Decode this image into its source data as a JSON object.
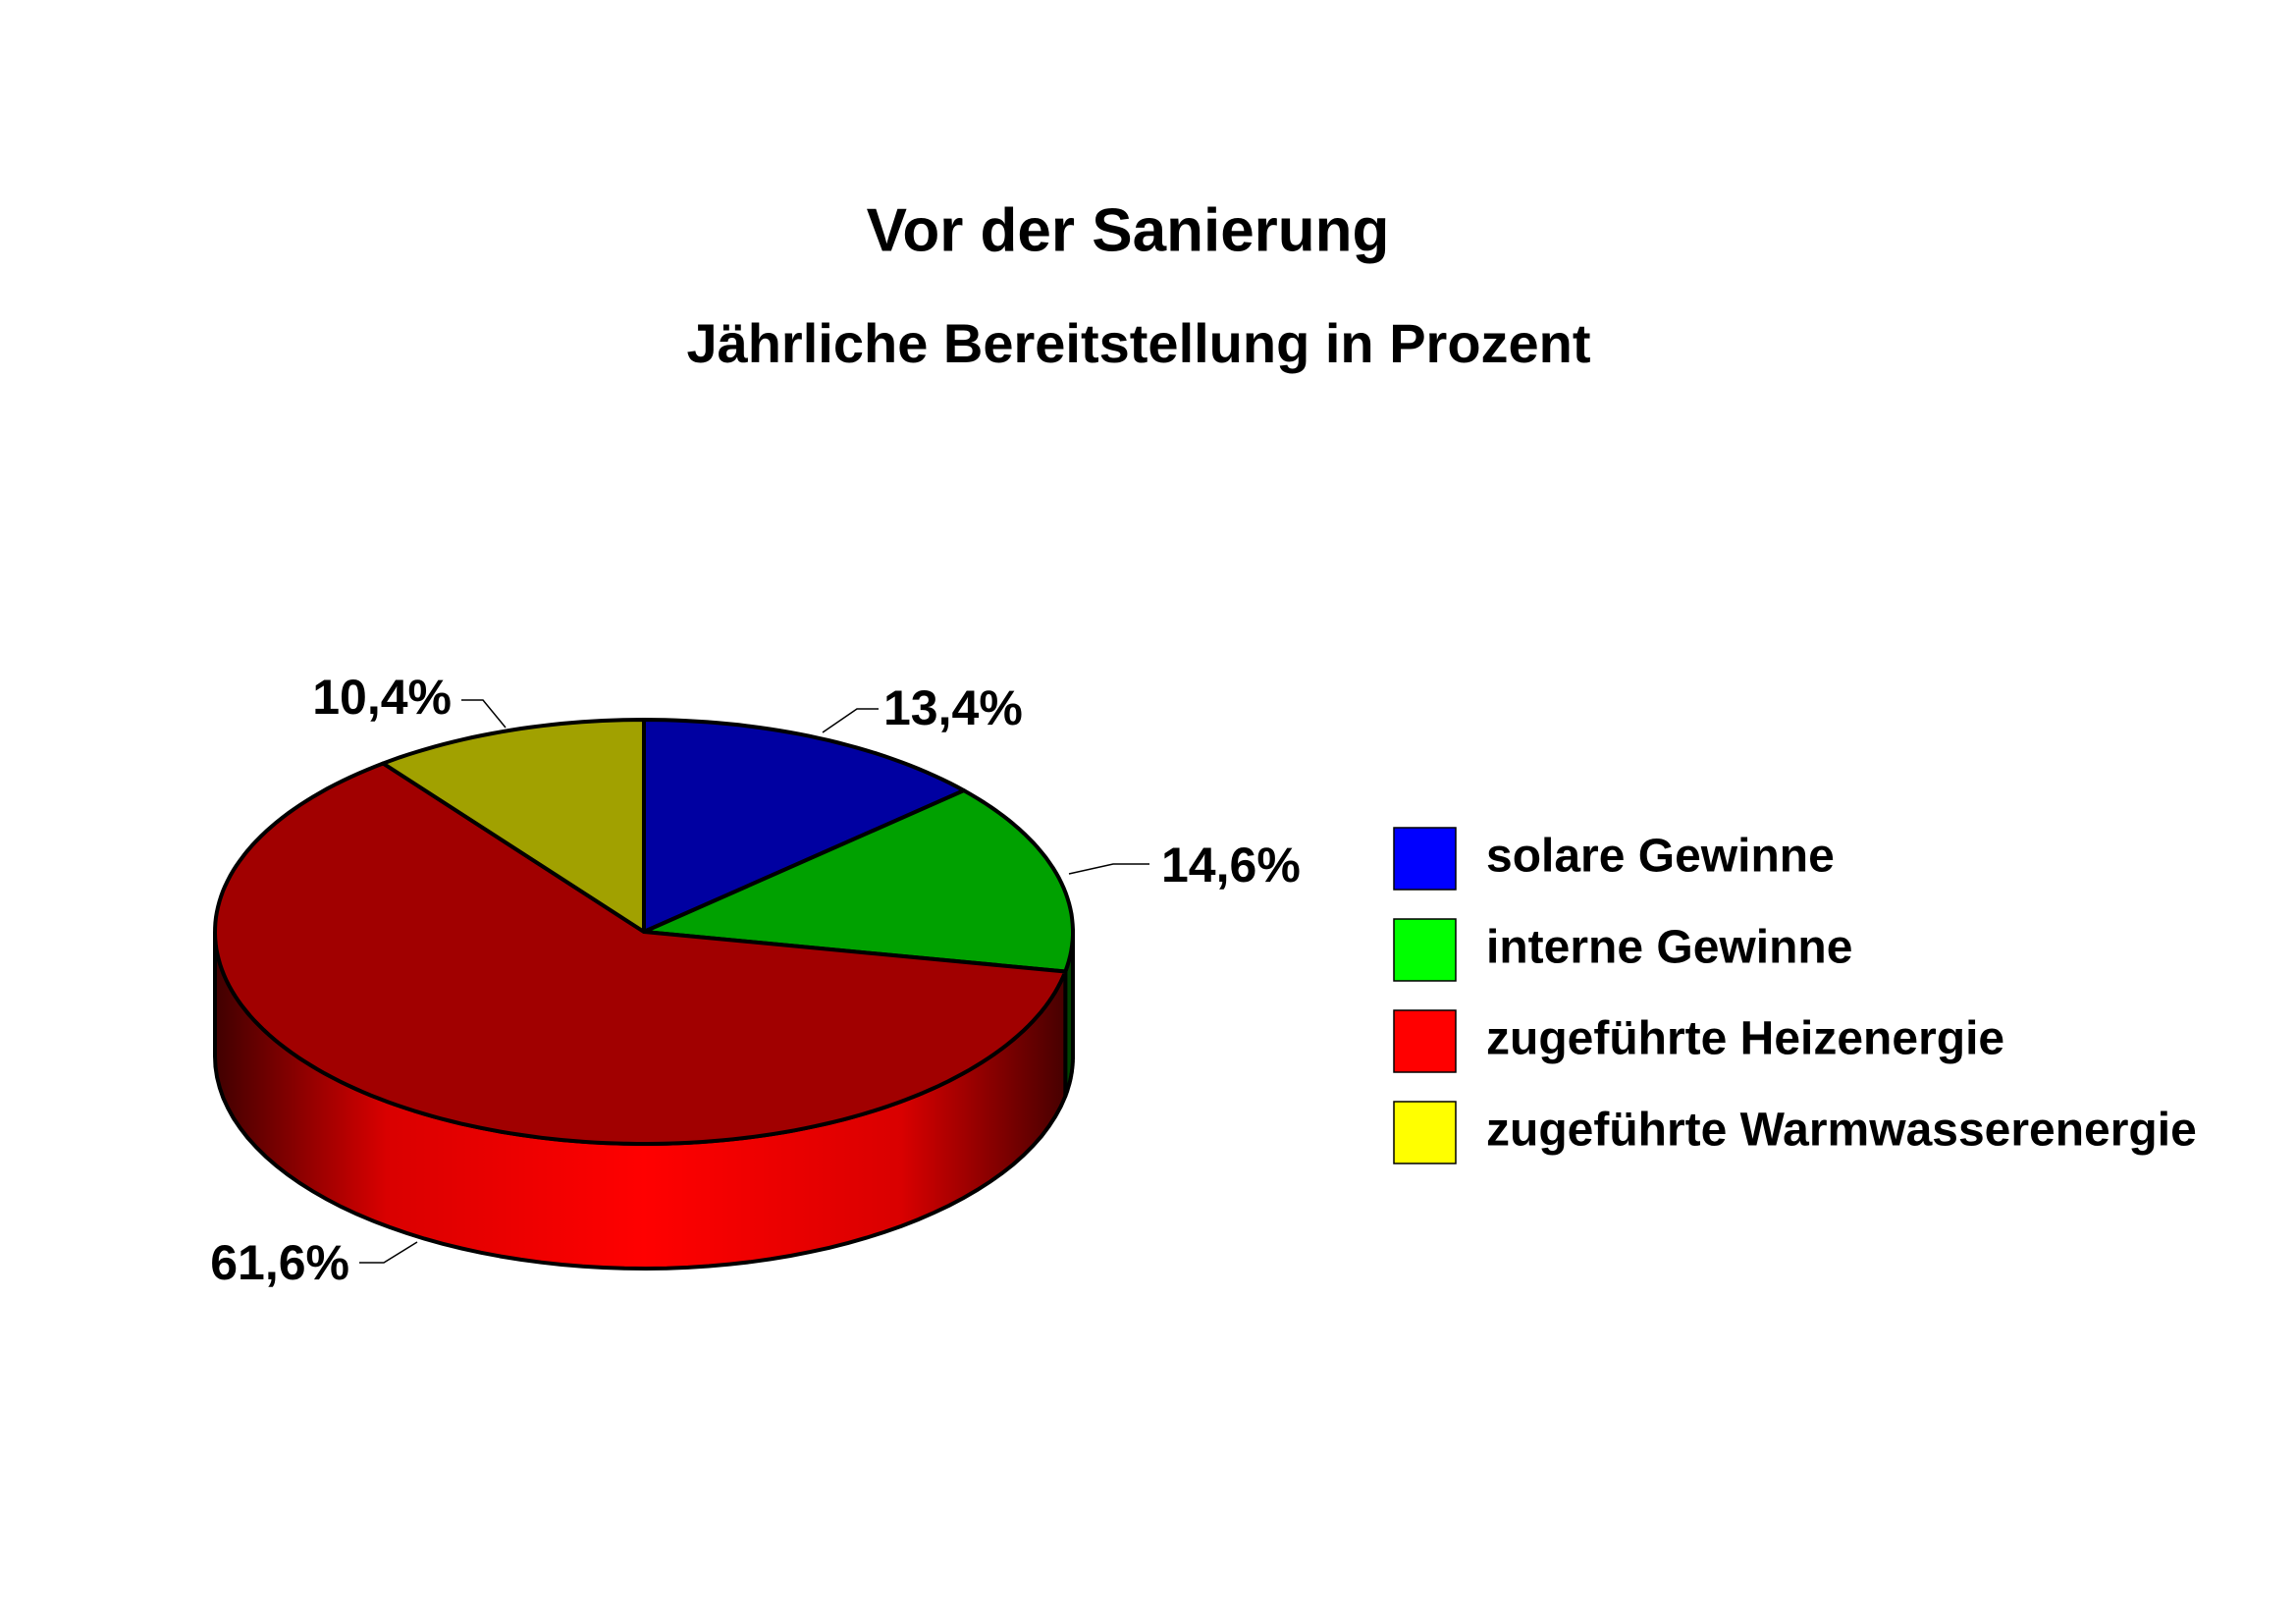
{
  "chart_data": {
    "type": "pie3d",
    "title": "Vor der Sanierung",
    "subtitle": "Jährliche Bereitstellung in Prozent",
    "categories": [
      "solare Gewinne",
      "interne Gewinne",
      "zugeführte Heizenergie",
      "zugeführte Warmwasserenergie"
    ],
    "values": [
      13.4,
      14.6,
      61.6,
      10.4
    ],
    "value_labels": [
      "13,4%",
      "14,6%",
      "61,6%",
      "10,4%"
    ],
    "colors": [
      "#0000ff",
      "#00ff00",
      "#ff0000",
      "#ffff00"
    ],
    "legend": "right"
  }
}
